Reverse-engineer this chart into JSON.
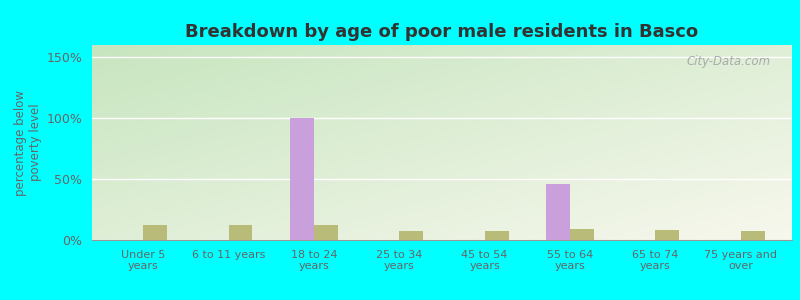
{
  "title": "Breakdown by age of poor male residents in Basco",
  "categories": [
    "Under 5\nyears",
    "6 to 11 years",
    "18 to 24\nyears",
    "25 to 34\nyears",
    "45 to 54\nyears",
    "55 to 64\nyears",
    "65 to 74\nyears",
    "75 years and\nover"
  ],
  "basco_values": [
    0,
    0,
    100,
    0,
    0,
    46,
    0,
    0
  ],
  "illinois_values": [
    12,
    12,
    12,
    7,
    7,
    9,
    8,
    7
  ],
  "basco_color": "#c9a0dc",
  "illinois_color": "#b8bc78",
  "ylabel": "percentage below\npoverty level",
  "ylim": [
    0,
    160
  ],
  "yticks": [
    0,
    50,
    100,
    150
  ],
  "ytick_labels": [
    "0%",
    "50%",
    "100%",
    "150%"
  ],
  "outer_background": "#00ffff",
  "plot_bg_topleft": "#c8e6c0",
  "plot_bg_center": "#f5f5e8",
  "watermark": "City-Data.com",
  "bar_width": 0.28,
  "title_color": "#333333",
  "label_color": "#666666"
}
